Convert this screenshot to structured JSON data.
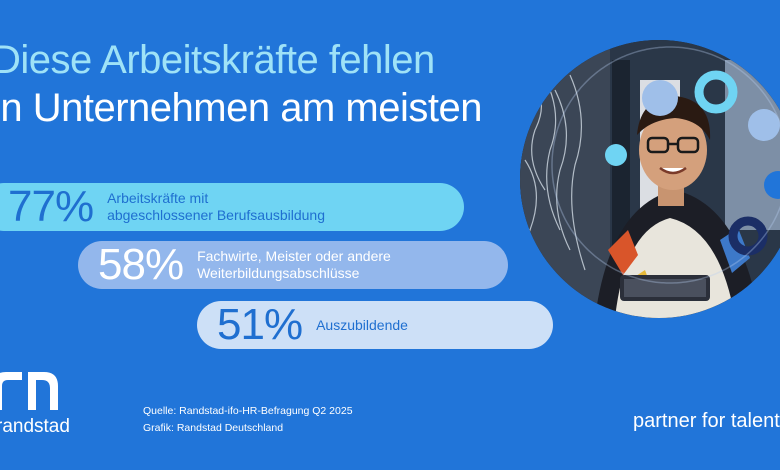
{
  "title": {
    "line1": "Diese Arbeitskräfte fehlen",
    "line2": "in Unternehmen am meisten"
  },
  "chart_data": {
    "type": "bar",
    "categories": [
      "Arbeitskräfte mit\nabgeschlossener Berufsausbildung",
      "Fachwirte, Meister oder andere\nWeiterbildungsabschlüsse",
      "Auszubildende"
    ],
    "values": [
      77,
      58,
      51
    ],
    "value_labels": [
      "77%",
      "58%",
      "51%"
    ],
    "colors": [
      "#6fd4f3",
      "#93b7ec",
      "#cde0f7"
    ]
  },
  "source": {
    "quelle": "Quelle: Randstad-ifo-HR-Befragung Q2 2025",
    "grafik": "Grafik: Randstad Deutschland"
  },
  "brand": {
    "name": "randstad",
    "tagline": "partner for talent"
  },
  "colors": {
    "background": "#2175d9",
    "title_accent": "#9fe2f7",
    "dark_text": "#1f6fd0"
  }
}
